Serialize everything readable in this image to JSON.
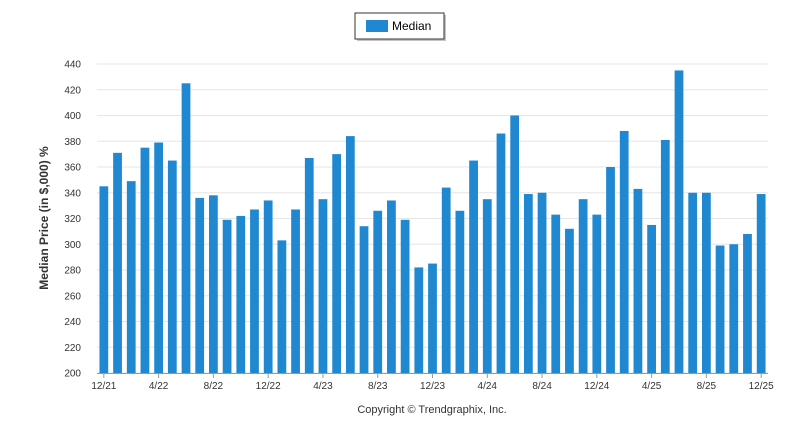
{
  "colors": {
    "bar": "#1f88d0",
    "grid": "#e6e6e6",
    "axis": "#999999"
  },
  "footer": "Copyright © Trendgraphix, Inc.",
  "chart_data": {
    "type": "bar",
    "title": "",
    "xlabel": "",
    "ylabel": "Median Price (in $,000) %",
    "ylim": [
      200,
      440
    ],
    "yticks": [
      200,
      220,
      240,
      260,
      280,
      300,
      320,
      340,
      360,
      380,
      400,
      420,
      440
    ],
    "grid": true,
    "legend": {
      "position": "top-center",
      "entries": [
        "Median"
      ]
    },
    "x_tick_labels": [
      "12/21",
      "4/22",
      "8/22",
      "12/22",
      "4/23",
      "8/23",
      "12/23",
      "4/24",
      "8/24",
      "12/24",
      "4/25",
      "8/25",
      "12/25"
    ],
    "categories": [
      "12/21",
      "1/22",
      "2/22",
      "3/22",
      "4/22",
      "5/22",
      "6/22",
      "7/22",
      "8/22",
      "9/22",
      "10/22",
      "11/22",
      "12/22",
      "1/23",
      "2/23",
      "3/23",
      "4/23",
      "5/23",
      "6/23",
      "7/23",
      "8/23",
      "9/23",
      "10/23",
      "11/23",
      "12/23",
      "1/24",
      "2/24",
      "3/24",
      "4/24",
      "5/24",
      "6/24",
      "7/24",
      "8/24",
      "9/24",
      "10/24",
      "11/24",
      "12/24",
      "1/25",
      "2/25",
      "3/25",
      "4/25",
      "5/25",
      "6/25",
      "7/25",
      "8/25",
      "9/25",
      "10/25",
      "11/25",
      "12/25"
    ],
    "series": [
      {
        "name": "Median",
        "values": [
          345,
          371,
          349,
          375,
          379,
          365,
          425,
          336,
          338,
          319,
          322,
          327,
          334,
          303,
          327,
          367,
          335,
          370,
          384,
          314,
          326,
          334,
          319,
          282,
          285,
          344,
          326,
          365,
          335,
          386,
          400,
          339,
          340,
          323,
          312,
          335,
          323,
          360,
          388,
          343,
          315,
          381,
          435,
          340,
          340,
          299,
          300,
          308,
          339
        ]
      }
    ]
  }
}
